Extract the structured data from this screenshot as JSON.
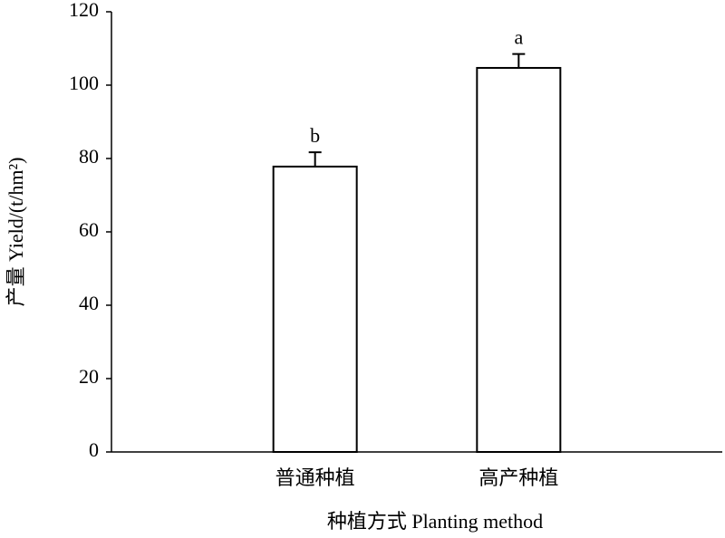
{
  "chart_data": {
    "type": "bar",
    "categories": [
      "普通种植",
      "高产种植"
    ],
    "values": [
      77.8,
      104.7
    ],
    "errors": [
      3.9,
      3.8
    ],
    "significance": [
      "b",
      "a"
    ],
    "color": "#ffffff",
    "edge_color": "#000000",
    "ylim": [
      0,
      120
    ],
    "yticks": [
      0,
      20,
      40,
      60,
      80,
      100,
      120
    ],
    "y_label": "产量 Yield/(t/hm²)",
    "x_label": "种植方式  Planting method",
    "grid": false
  }
}
